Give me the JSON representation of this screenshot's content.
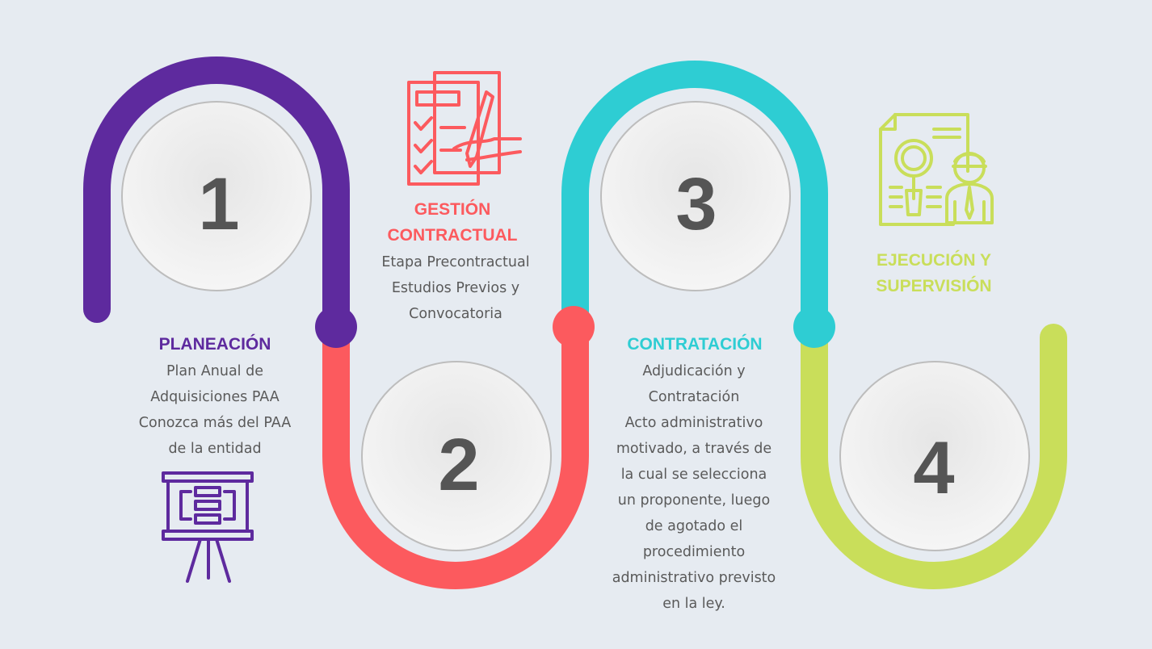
{
  "colors": {
    "background": "#e6ebf1",
    "step1": "#5e2a9e",
    "step2": "#fc5a5e",
    "step3": "#2ecdd3",
    "step4": "#c9de5a",
    "number": "#555555",
    "text": "#5a5a5a"
  },
  "steps": [
    {
      "number": "1",
      "title": "PLANEACIÓN",
      "lines": [
        "Plan Anual de",
        "Adquisiciones PAA",
        "Conozca más del PAA",
        "de la entidad"
      ],
      "icon": "presentation-board-icon"
    },
    {
      "number": "2",
      "title_lines": [
        "GESTIÓN",
        "CONTRACTUAL"
      ],
      "lines": [
        "Etapa Precontractual",
        "Estudios Previos y",
        "Convocatoria"
      ],
      "icon": "checklist-signing-icon"
    },
    {
      "number": "3",
      "title": "CONTRATACIÓN",
      "lines": [
        "Adjudicación y",
        "Contratación",
        "Acto administrativo",
        "motivado, a través de",
        "la cual se selecciona",
        "un proponente, luego",
        "de agotado el",
        "procedimiento",
        "administrativo previsto",
        "en la ley."
      ],
      "icon": null
    },
    {
      "number": "4",
      "title_lines": [
        "EJECUCIÓN Y",
        "SUPERVISIÓN"
      ],
      "lines": [],
      "icon": "document-inspector-icon"
    }
  ]
}
